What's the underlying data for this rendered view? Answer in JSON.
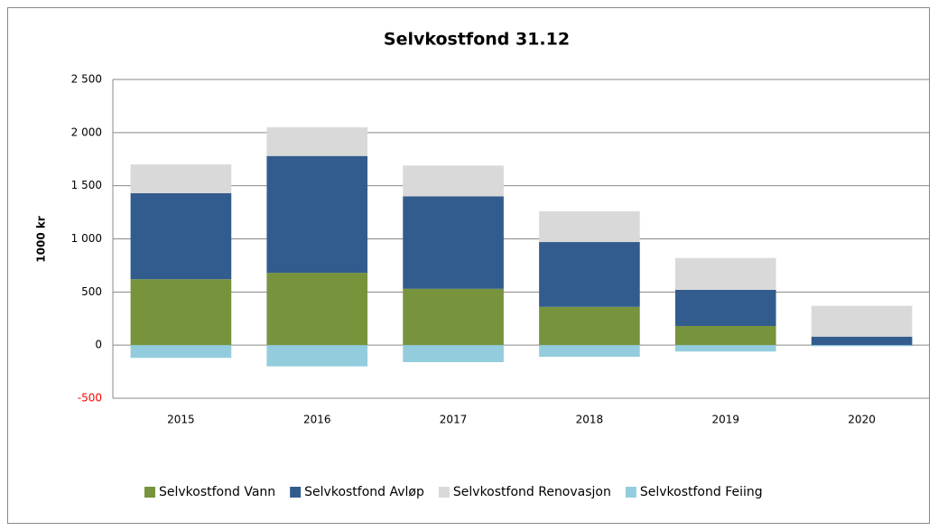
{
  "chart_data": {
    "type": "stacked_bar",
    "title": "Selvkostfond 31.12",
    "y_label": "1000 kr",
    "categories": [
      "2015",
      "2016",
      "2017",
      "2018",
      "2019",
      "2020"
    ],
    "series": [
      {
        "name": "Selvkostfond Vann",
        "color": "#77933c",
        "values": [
          620,
          680,
          530,
          360,
          180,
          0
        ]
      },
      {
        "name": "Selvkostfond Avløp",
        "color": "#335c8e",
        "values": [
          810,
          1100,
          870,
          610,
          340,
          80
        ]
      },
      {
        "name": "Selvkostfond Renovasjon",
        "color": "#d9d9d9",
        "values": [
          270,
          270,
          290,
          290,
          300,
          290
        ]
      },
      {
        "name": "Selvkostfond Feiing",
        "color": "#93cddd",
        "values": [
          -120,
          -200,
          -160,
          -110,
          -60,
          -10
        ]
      }
    ],
    "ylim": [
      -500,
      2500
    ],
    "yticks": [
      -500,
      0,
      500,
      {
        "value": 1000,
        "label": "1 000"
      },
      {
        "value": 1500,
        "label": "1 500"
      },
      {
        "value": 2000,
        "label": "2 000"
      },
      {
        "value": 2500,
        "label": "2 500"
      }
    ],
    "negative_tick_color": "#ff0000",
    "grid": true,
    "legend": "bottom"
  }
}
